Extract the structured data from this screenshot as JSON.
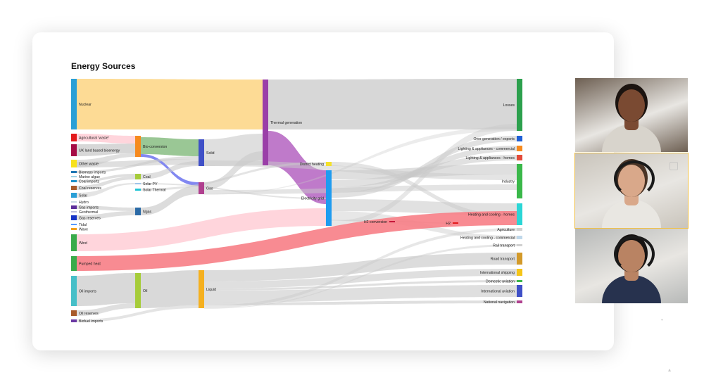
{
  "chart_title": "Energy Sources",
  "colors": {
    "flow": "#c9c9c9",
    "nuclear_flow": "#fdd78a",
    "bio_flow": "#8fc18a",
    "ngas_flow": "#7b82f0",
    "thermal_flow": "#b86cc4",
    "wind_flow": "#ffd0d8",
    "pumped_flow": "#f77e86"
  },
  "nodes": [
    {
      "id": "nuclear",
      "label": "Nuclear",
      "color": "#2a9fd6"
    },
    {
      "id": "agri",
      "label": "Agricultural 'waste'",
      "color": "#e3191c"
    },
    {
      "id": "ukbio",
      "label": "UK land based bioenergy",
      "color": "#a50b44"
    },
    {
      "id": "otherwaste",
      "label": "Other waste",
      "color": "#f7e11c"
    },
    {
      "id": "bioimports",
      "label": "Biomass imports",
      "color": "#1f77b4"
    },
    {
      "id": "marine",
      "label": "Marine algae",
      "color": "#9fd4e7"
    },
    {
      "id": "coalimports",
      "label": "Coal imports",
      "color": "#1b8fc9"
    },
    {
      "id": "coalreserves",
      "label": "Coal reserves",
      "color": "#a85b2a"
    },
    {
      "id": "solar",
      "label": "Solar",
      "color": "#2a9fd6"
    },
    {
      "id": "hydro",
      "label": "Hydro",
      "color": "#c8d8e4"
    },
    {
      "id": "gasimports",
      "label": "Gas imports",
      "color": "#5b2d9a"
    },
    {
      "id": "geothermal",
      "label": "Geothermal",
      "color": "#bcbddc"
    },
    {
      "id": "gasreserves",
      "label": "Gas reserves",
      "color": "#1634c7"
    },
    {
      "id": "tidal",
      "label": "Tidal",
      "color": "#5599ff"
    },
    {
      "id": "wave",
      "label": "Wave",
      "color": "#f4a01c"
    },
    {
      "id": "wind",
      "label": "Wind",
      "color": "#39ab4a"
    },
    {
      "id": "pumpedheat",
      "label": "Pumped heat",
      "color": "#39ab4a"
    },
    {
      "id": "oilimports",
      "label": "Oil imports",
      "color": "#46bfc8"
    },
    {
      "id": "oilreserves",
      "label": "Oil reserves",
      "color": "#a85b2a"
    },
    {
      "id": "biofuel",
      "label": "Biofuel imports",
      "color": "#6a37a3"
    },
    {
      "id": "bioconv",
      "label": "Bio-conversion",
      "color": "#f68a1e"
    },
    {
      "id": "coal",
      "label": "Coal",
      "color": "#a6cc3a"
    },
    {
      "id": "solarpv",
      "label": "Solar PV",
      "color": "#a0c4e8"
    },
    {
      "id": "solarthermal",
      "label": "Solar Thermal",
      "color": "#20c5d5"
    },
    {
      "id": "ngas",
      "label": "Ngas",
      "color": "#2b6aa6"
    },
    {
      "id": "oil",
      "label": "Oil",
      "color": "#a6cc3a"
    },
    {
      "id": "solid",
      "label": "Solid",
      "color": "#3f50c7"
    },
    {
      "id": "gas",
      "label": "Gas",
      "color": "#b0408f"
    },
    {
      "id": "liquid",
      "label": "Liquid",
      "color": "#f5b01f"
    },
    {
      "id": "thermal",
      "label": "Thermal generation",
      "color": "#9a3fa8"
    },
    {
      "id": "district",
      "label": "District heating",
      "color": "#f4e12b"
    },
    {
      "id": "grid",
      "label": "Electricity grid",
      "color": "#1f9cf0"
    },
    {
      "id": "h2conv",
      "label": "H2 conversion",
      "color": "#c7173a"
    },
    {
      "id": "h2",
      "label": "H2",
      "color": "#e3191c"
    },
    {
      "id": "losses",
      "label": "Losses",
      "color": "#2ca04d"
    },
    {
      "id": "overgen",
      "label": "Over generation / exports",
      "color": "#1f5fd6"
    },
    {
      "id": "lightcom",
      "label": "Lighting & appliances - commercial",
      "color": "#f68a1e"
    },
    {
      "id": "lighthome",
      "label": "Lighting & appliances - homes",
      "color": "#e34b3a"
    },
    {
      "id": "industry",
      "label": "Industry",
      "color": "#3ab84a"
    },
    {
      "id": "heathome",
      "label": "Heating and cooling - homes",
      "color": "#2bd6d6"
    },
    {
      "id": "agriculture",
      "label": "Agriculture",
      "color": "#d0d0d0"
    },
    {
      "id": "heatcom",
      "label": "Heating and cooling - commercial",
      "color": "#c0d8ea"
    },
    {
      "id": "rail",
      "label": "Rail transport",
      "color": "#d0d0d0"
    },
    {
      "id": "road",
      "label": "Road transport",
      "color": "#d39a2a"
    },
    {
      "id": "intship",
      "label": "International shipping",
      "color": "#f5c518"
    },
    {
      "id": "domavi",
      "label": "Domestic aviation",
      "color": "#3ab84a"
    },
    {
      "id": "intavi",
      "label": "International aviation",
      "color": "#3f50c7"
    },
    {
      "id": "natnav",
      "label": "National navigation",
      "color": "#b0408f"
    }
  ],
  "video_tiles": [
    {
      "name": "participant-1",
      "bg": "#6d5f52",
      "skin": "#7a4a32",
      "shirt": "#d8d4cc",
      "hair": "#1c1410"
    },
    {
      "name": "participant-2",
      "bg": "#c9c4bb",
      "skin": "#d9a88a",
      "shirt": "#e9e7e2",
      "hair": "#4a3426"
    },
    {
      "name": "participant-3",
      "bg": "#b7b9b8",
      "skin": "#b98363",
      "shirt": "#27324e",
      "hair": "#171312"
    }
  ]
}
